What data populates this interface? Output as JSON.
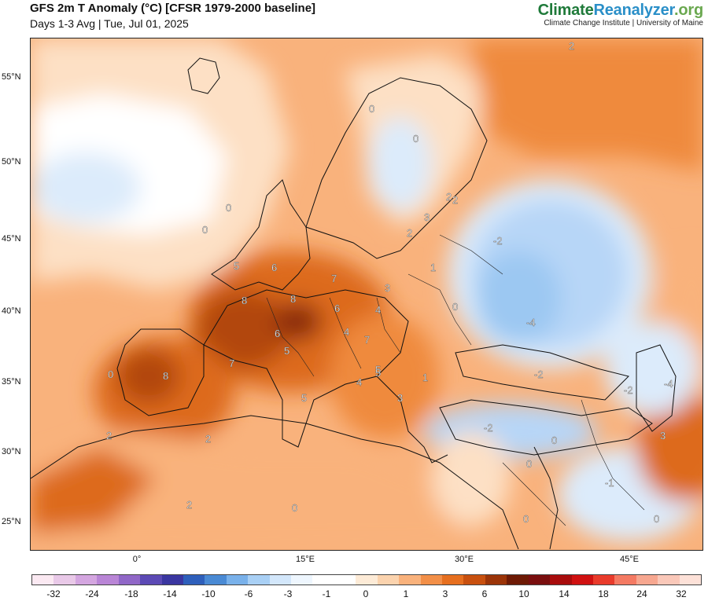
{
  "header": {
    "title": "GFS 2m T Anomaly (°C) [CFSR 1979-2000 baseline]",
    "subtitle": "Days 1-3 Avg | Tue, Jul 01, 2025"
  },
  "brand": {
    "logo_part1": "Climate",
    "logo_part2": "Reanalyzer",
    "logo_part3": ".org",
    "tagline": "Climate Change Institute | University of Maine"
  },
  "map": {
    "lat_labels": [
      "55°N",
      "50°N",
      "45°N",
      "40°N",
      "35°N",
      "30°N",
      "25°N"
    ],
    "lon_labels": [
      "0°",
      "15°E",
      "30°E",
      "45°E"
    ],
    "contour_labels": [
      "2",
      "0",
      "0",
      "0",
      "0",
      "2",
      "3",
      "2",
      "2",
      "1",
      "5",
      "6",
      "7",
      "8",
      "8",
      "6",
      "4",
      "3",
      "6",
      "5",
      "4",
      "7",
      "0",
      "-2",
      "-4",
      "8",
      "7",
      "0",
      "5",
      "5",
      "4",
      "5",
      "1",
      "3",
      "-2",
      "-4",
      "-2",
      "2",
      "2",
      "-2",
      "0",
      "3",
      "0",
      "-1",
      "2",
      "0",
      "0",
      "0"
    ],
    "colors": {
      "warm_light": "#fde0c5",
      "warm_mid": "#f9b27c",
      "warm_strong": "#ef8a3e",
      "warm_deep": "#dd6a1e",
      "warm_extreme": "#b2470f",
      "hot_core": "#8a2a0a",
      "near_zero": "#ffffff",
      "cool_light": "#dcebfb",
      "cool_mid": "#b7d6f7",
      "cool_strong": "#9cc8f2"
    }
  },
  "colorbar": {
    "labels": [
      "-32",
      "-24",
      "-18",
      "-14",
      "-10",
      "-6",
      "-3",
      "-1",
      "0",
      "1",
      "3",
      "6",
      "10",
      "14",
      "18",
      "24",
      "32"
    ],
    "colors": [
      "#fbe9f2",
      "#e9c9e8",
      "#d4a6e0",
      "#b985d6",
      "#9067c7",
      "#5c4ab5",
      "#3a36a0",
      "#2e5fbb",
      "#4a8ad4",
      "#79b1ea",
      "#a9d0f5",
      "#d3e7fb",
      "#eef6fe",
      "#ffffff",
      "#ffffff",
      "#fdebd7",
      "#fbd3ae",
      "#f9b27c",
      "#f28f48",
      "#e66f1f",
      "#c8500f",
      "#9b3408",
      "#6e1a05",
      "#7a0f0f",
      "#a80c0c",
      "#d01111",
      "#e93b2b",
      "#f47a63",
      "#f7a790",
      "#fac8b9",
      "#fde1d8"
    ]
  }
}
